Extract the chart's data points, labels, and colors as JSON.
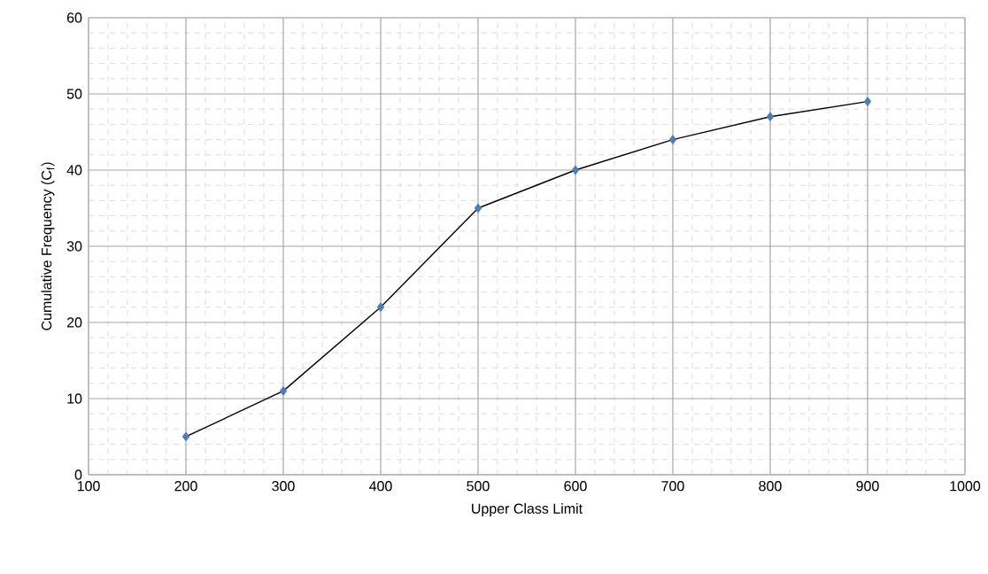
{
  "chart_data": {
    "type": "line",
    "xlabel": "Upper Class Limit",
    "ylabel": "Cumulative Frequency (C$_{f}$)",
    "x": [
      200,
      300,
      400,
      500,
      600,
      700,
      800,
      900
    ],
    "series": [
      {
        "color": "#4a7ebb",
        "values": [
          5,
          11,
          22,
          35,
          40,
          44,
          47,
          49
        ]
      }
    ],
    "xlim": [
      100,
      1000
    ],
    "xticks": [
      100,
      200,
      300,
      400,
      500,
      600,
      700,
      800,
      900,
      1000
    ],
    "ylim": [
      0,
      60
    ],
    "yticks": [
      0,
      10,
      20,
      30,
      40,
      50,
      60
    ],
    "grid": true,
    "marker": "diamond",
    "line_style": "solid"
  }
}
